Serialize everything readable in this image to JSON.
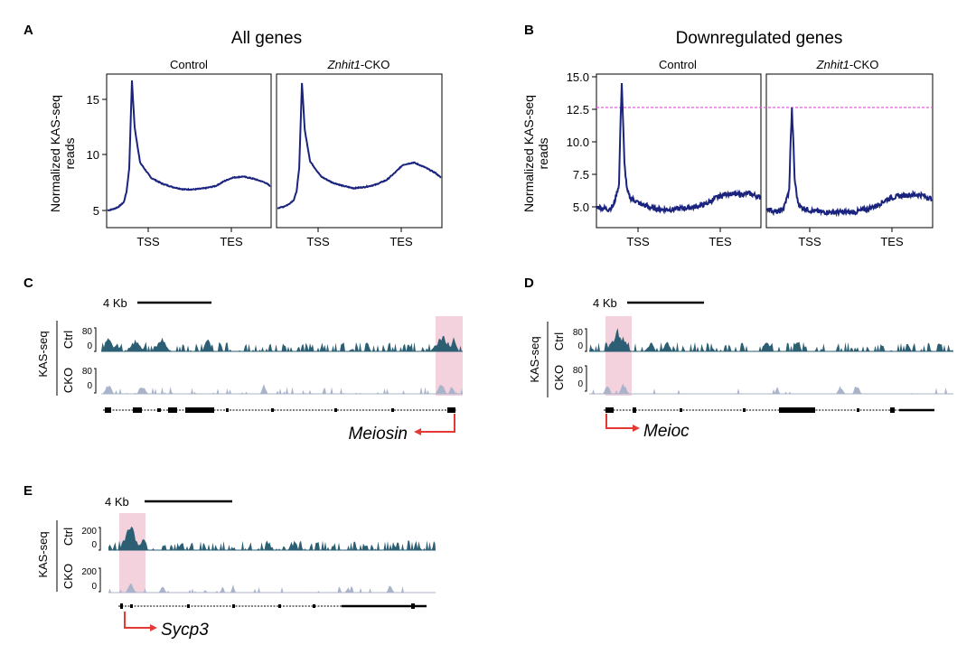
{
  "panels": {
    "A": {
      "letter": "A",
      "title": "All genes"
    },
    "B": {
      "letter": "B",
      "title": "Downregulated genes"
    },
    "C": {
      "letter": "C",
      "gene": "Meiosin",
      "scale": "4 Kb"
    },
    "D": {
      "letter": "D",
      "gene": "Meioc",
      "scale": "4 Kb"
    },
    "E": {
      "letter": "E",
      "gene": "Sycp3",
      "scale": "4 Kb"
    }
  },
  "subplot_titles": {
    "control": "Control",
    "cko_italic": "Znhit1",
    "cko_suffix": "-CKO"
  },
  "ylabel_lines": [
    "Normalized KAS-seq",
    "reads"
  ],
  "tick_labels": {
    "tss": "TSS",
    "tes": "TES",
    "A_y": [
      "5",
      "10",
      "15"
    ],
    "B_y": [
      "5.0",
      "7.5",
      "10.0",
      "12.5",
      "15.0"
    ]
  },
  "track_labels": {
    "assay": "KAS-seq",
    "ctrl": "Ctrl",
    "cko": "CKO",
    "scale_80": "80",
    "scale_200": "200",
    "zero": "0"
  },
  "colors": {
    "profile_line": "#1a237e",
    "ctrl_track": "#2c5f73",
    "cko_track": "#a9b3c9",
    "highlight": "#f3d2de",
    "dashed_line": "#e85be0",
    "arrow": "#e53935"
  },
  "chart_data": [
    {
      "type": "line",
      "panel": "A",
      "title": "Control",
      "x_ticks": [
        "TSS",
        "TES"
      ],
      "ylim": [
        4,
        17
      ],
      "yticks": [
        5,
        10,
        15
      ],
      "ylabel": "Normalized KAS-seq reads",
      "series": [
        {
          "x": [
            0,
            10,
            20,
            30,
            35,
            40,
            45,
            50,
            60,
            80,
            100,
            120,
            140,
            160,
            180,
            200,
            215,
            230,
            250,
            270,
            290,
            300
          ],
          "values": [
            5.4,
            5.5,
            5.7,
            6.1,
            7.0,
            9.0,
            16.5,
            12.5,
            9.5,
            8.2,
            7.7,
            7.4,
            7.2,
            7.2,
            7.3,
            7.5,
            7.9,
            8.2,
            8.3,
            8.1,
            7.8,
            7.5
          ]
        }
      ]
    },
    {
      "type": "line",
      "panel": "A",
      "title": "Znhit1-CKO",
      "x_ticks": [
        "TSS",
        "TES"
      ],
      "ylim": [
        4,
        17
      ],
      "yticks": [
        5,
        10,
        15
      ],
      "series": [
        {
          "x": [
            0,
            10,
            20,
            30,
            35,
            40,
            45,
            50,
            60,
            80,
            100,
            120,
            140,
            160,
            180,
            200,
            215,
            230,
            250,
            270,
            290,
            300
          ],
          "values": [
            5.6,
            5.7,
            5.9,
            6.3,
            7.0,
            9.0,
            16.3,
            12.3,
            9.6,
            8.3,
            7.8,
            7.5,
            7.3,
            7.4,
            7.6,
            8.0,
            8.6,
            9.3,
            9.5,
            9.1,
            8.6,
            8.2
          ]
        }
      ]
    },
    {
      "type": "line",
      "panel": "B",
      "title": "Control",
      "x_ticks": [
        "TSS",
        "TES"
      ],
      "ylim": [
        3.8,
        15.2
      ],
      "yticks": [
        5.0,
        7.5,
        10.0,
        12.5,
        15.0
      ],
      "ylabel": "Normalized KAS-seq reads",
      "reference_line": 12.7,
      "series": [
        {
          "x": [
            0,
            10,
            20,
            30,
            40,
            42,
            45,
            48,
            50,
            55,
            60,
            80,
            100,
            120,
            140,
            160,
            180,
            200,
            220,
            240,
            260,
            280,
            300
          ],
          "values": [
            5.3,
            5.2,
            5.1,
            5.4,
            7.0,
            10.5,
            14.7,
            11.0,
            8.5,
            6.5,
            6.0,
            5.5,
            5.2,
            5.1,
            5.1,
            5.2,
            5.3,
            5.5,
            6.0,
            6.3,
            6.2,
            6.3,
            6.0
          ]
        }
      ]
    },
    {
      "type": "line",
      "panel": "B",
      "title": "Znhit1-CKO",
      "x_ticks": [
        "TSS",
        "TES"
      ],
      "ylim": [
        3.8,
        15.2
      ],
      "yticks": [
        5.0,
        7.5,
        10.0,
        12.5,
        15.0
      ],
      "reference_line": 12.7,
      "series": [
        {
          "x": [
            0,
            10,
            20,
            30,
            40,
            42,
            45,
            48,
            50,
            55,
            60,
            80,
            100,
            120,
            140,
            160,
            180,
            200,
            220,
            240,
            260,
            280,
            300
          ],
          "values": [
            5.2,
            5.0,
            4.9,
            5.2,
            6.5,
            9.5,
            12.6,
            9.8,
            7.4,
            5.8,
            5.3,
            5.0,
            4.9,
            4.9,
            4.9,
            4.9,
            5.1,
            5.4,
            5.9,
            6.1,
            6.2,
            6.2,
            5.9
          ]
        }
      ]
    }
  ]
}
